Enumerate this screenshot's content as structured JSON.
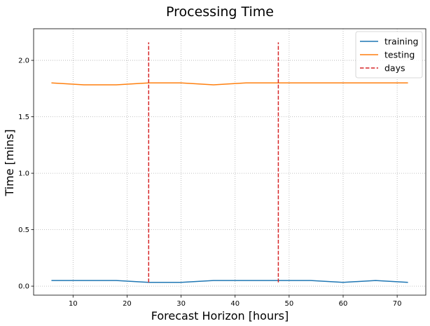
{
  "chart_data": {
    "type": "line",
    "title": "Processing Time",
    "xlabel": "Forecast Horizon [hours]",
    "ylabel": "Time [mins]",
    "xlim": [
      2.7,
      75.3
    ],
    "ylim": [
      -0.08,
      2.28
    ],
    "xticks": [
      10,
      20,
      30,
      40,
      50,
      60,
      70
    ],
    "yticks": [
      0.0,
      0.5,
      1.0,
      1.5,
      2.0
    ],
    "ytick_labels": [
      "0.0",
      "0.5",
      "1.0",
      "1.5",
      "2.0"
    ],
    "grid": true,
    "legend_position": "top-right",
    "x": [
      6,
      12,
      18,
      24,
      30,
      36,
      42,
      48,
      54,
      60,
      66,
      72
    ],
    "series": [
      {
        "name": "training",
        "color": "#1f77b4",
        "style": "solid",
        "values": [
          0.05,
          0.05,
          0.05,
          0.033,
          0.033,
          0.05,
          0.05,
          0.05,
          0.05,
          0.033,
          0.05,
          0.033
        ]
      },
      {
        "name": "testing",
        "color": "#ff7f0e",
        "style": "solid",
        "values": [
          1.8,
          1.783,
          1.783,
          1.8,
          1.8,
          1.783,
          1.8,
          1.8,
          1.8,
          1.8,
          1.8,
          1.8
        ]
      }
    ],
    "vlines": {
      "name": "days",
      "color": "#d62728",
      "style": "dashed",
      "x": [
        24,
        48
      ],
      "ymin": 0.033,
      "ymax": 2.16
    }
  }
}
